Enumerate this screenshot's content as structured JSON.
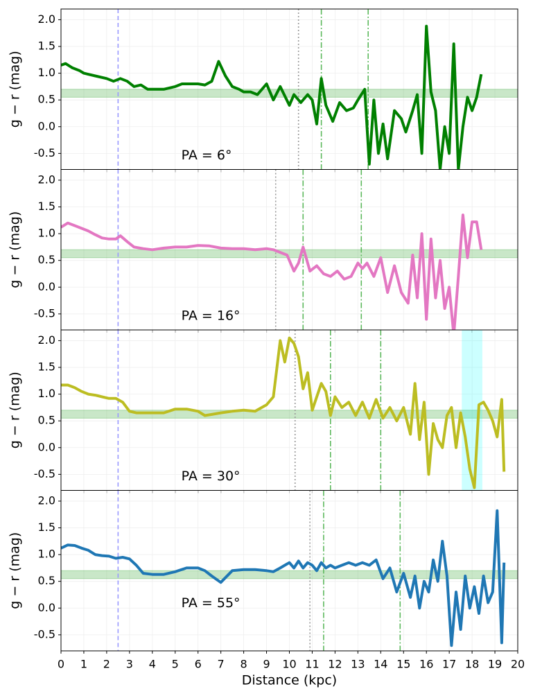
{
  "chart_data": [
    {
      "type": "line",
      "ylabel": "g − r (mag)",
      "annotation": "PA = 6°",
      "color": "#008000",
      "xlim": [
        0,
        20
      ],
      "ylim": [
        -0.8,
        2.2
      ],
      "xticks": [
        0,
        1,
        2,
        3,
        4,
        5,
        6,
        7,
        8,
        9,
        10,
        11,
        12,
        13,
        14,
        15,
        16,
        17,
        18,
        19,
        20
      ],
      "yticks": [
        -0.5,
        {
          "value": 0,
          "label": "0.0"
        },
        0.5,
        {
          "value": 1,
          "label": "1.0"
        },
        1.5,
        {
          "value": 2,
          "label": "2.0"
        }
      ],
      "grid": true,
      "hband": {
        "y": [
          0.55,
          0.7
        ],
        "color": "#4daf4a"
      },
      "vlines": [
        {
          "x": 2.5,
          "color": "#9999ff",
          "style": "dashed"
        },
        {
          "x": 10.4,
          "color": "#999999",
          "style": "dotted"
        },
        {
          "x": 11.4,
          "color": "#5cb85c",
          "style": "dashdot"
        },
        {
          "x": 13.45,
          "color": "#5cb85c",
          "style": "dashdot"
        }
      ],
      "x": [
        0,
        0.2,
        0.5,
        0.8,
        1,
        1.5,
        2,
        2.3,
        2.6,
        2.9,
        3.2,
        3.5,
        3.8,
        4,
        4.5,
        5,
        5.3,
        5.6,
        6,
        6.3,
        6.6,
        6.9,
        7.2,
        7.5,
        7.8,
        8,
        8.3,
        8.6,
        9,
        9.3,
        9.6,
        10,
        10.2,
        10.5,
        10.8,
        11,
        11.2,
        11.4,
        11.6,
        11.9,
        12.2,
        12.5,
        12.8,
        13,
        13.3,
        13.5,
        13.7,
        13.9,
        14.1,
        14.3,
        14.6,
        14.9,
        15.1,
        15.4,
        15.6,
        15.8,
        16,
        16.2,
        16.4,
        16.6,
        16.8,
        17,
        17.2,
        17.4,
        17.6,
        17.8,
        18,
        18.2,
        18.4
      ],
      "values": [
        1.15,
        1.18,
        1.1,
        1.05,
        1.0,
        0.95,
        0.9,
        0.85,
        0.9,
        0.85,
        0.75,
        0.78,
        0.7,
        0.7,
        0.7,
        0.75,
        0.8,
        0.8,
        0.8,
        0.78,
        0.85,
        1.22,
        0.95,
        0.75,
        0.7,
        0.65,
        0.65,
        0.6,
        0.8,
        0.5,
        0.75,
        0.4,
        0.6,
        0.45,
        0.6,
        0.5,
        0.05,
        0.9,
        0.4,
        0.1,
        0.45,
        0.3,
        0.35,
        0.5,
        0.7,
        -0.7,
        0.5,
        -0.5,
        0.05,
        -0.6,
        0.3,
        0.15,
        -0.1,
        0.3,
        0.6,
        -0.5,
        1.88,
        0.65,
        0.3,
        -0.8,
        0.0,
        -0.5,
        1.55,
        -0.8,
        0.0,
        0.55,
        0.3,
        0.55,
        0.98
      ]
    },
    {
      "type": "line",
      "ylabel": "g − r (mag)",
      "annotation": "PA = 16°",
      "color": "#e377c2",
      "xlim": [
        0,
        20
      ],
      "ylim": [
        -0.8,
        2.2
      ],
      "xticks": [
        0,
        1,
        2,
        3,
        4,
        5,
        6,
        7,
        8,
        9,
        10,
        11,
        12,
        13,
        14,
        15,
        16,
        17,
        18,
        19,
        20
      ],
      "yticks": [
        -0.5,
        {
          "value": 0,
          "label": "0.0"
        },
        0.5,
        {
          "value": 1,
          "label": "1.0"
        },
        1.5,
        {
          "value": 2,
          "label": "2.0"
        }
      ],
      "grid": true,
      "hband": {
        "y": [
          0.55,
          0.7
        ],
        "color": "#4daf4a"
      },
      "vlines": [
        {
          "x": 2.5,
          "color": "#9999ff",
          "style": "dashed"
        },
        {
          "x": 9.4,
          "color": "#999999",
          "style": "dotted"
        },
        {
          "x": 10.6,
          "color": "#5cb85c",
          "style": "dashdot"
        },
        {
          "x": 13.15,
          "color": "#5cb85c",
          "style": "dashdot"
        }
      ],
      "x": [
        0,
        0.3,
        0.6,
        0.9,
        1.2,
        1.5,
        1.8,
        2.1,
        2.4,
        2.6,
        2.9,
        3.2,
        3.6,
        4,
        4.5,
        5,
        5.5,
        6,
        6.5,
        7,
        7.5,
        8,
        8.5,
        9,
        9.3,
        9.6,
        9.9,
        10.2,
        10.4,
        10.6,
        10.9,
        11.2,
        11.5,
        11.8,
        12.1,
        12.4,
        12.7,
        13,
        13.2,
        13.4,
        13.7,
        14,
        14.3,
        14.6,
        14.9,
        15.2,
        15.4,
        15.6,
        15.8,
        16,
        16.2,
        16.4,
        16.6,
        16.8,
        17,
        17.2,
        17.4,
        17.6,
        17.8,
        18,
        18.2,
        18.4
      ],
      "values": [
        1.12,
        1.2,
        1.15,
        1.1,
        1.05,
        0.98,
        0.92,
        0.9,
        0.9,
        0.96,
        0.85,
        0.75,
        0.72,
        0.7,
        0.73,
        0.75,
        0.75,
        0.78,
        0.77,
        0.73,
        0.72,
        0.72,
        0.7,
        0.72,
        0.7,
        0.65,
        0.6,
        0.3,
        0.45,
        0.75,
        0.3,
        0.4,
        0.25,
        0.2,
        0.3,
        0.15,
        0.2,
        0.45,
        0.35,
        0.45,
        0.2,
        0.55,
        -0.1,
        0.4,
        -0.1,
        -0.3,
        0.6,
        -0.2,
        1.0,
        -0.6,
        0.9,
        -0.2,
        0.5,
        -0.4,
        0.0,
        -0.9,
        0.2,
        1.35,
        0.55,
        1.22,
        1.22,
        0.7
      ]
    },
    {
      "type": "line",
      "ylabel": "g − r (mag)",
      "annotation": "PA = 30°",
      "color": "#bcbd22",
      "xlim": [
        0,
        20
      ],
      "ylim": [
        -0.8,
        2.2
      ],
      "xticks": [
        0,
        1,
        2,
        3,
        4,
        5,
        6,
        7,
        8,
        9,
        10,
        11,
        12,
        13,
        14,
        15,
        16,
        17,
        18,
        19,
        20
      ],
      "yticks": [
        -0.5,
        {
          "value": 0,
          "label": "0.0"
        },
        0.5,
        {
          "value": 1,
          "label": "1.0"
        },
        1.5,
        {
          "value": 2,
          "label": "2.0"
        }
      ],
      "grid": true,
      "hband": {
        "y": [
          0.55,
          0.7
        ],
        "color": "#4daf4a"
      },
      "vspan": {
        "x": [
          17.55,
          18.45
        ],
        "color": "#00ffff"
      },
      "vlines": [
        {
          "x": 2.5,
          "color": "#9999ff",
          "style": "dashed"
        },
        {
          "x": 10.25,
          "color": "#999999",
          "style": "dotted"
        },
        {
          "x": 11.8,
          "color": "#5cb85c",
          "style": "dashdot"
        },
        {
          "x": 14.0,
          "color": "#5cb85c",
          "style": "dashdot"
        }
      ],
      "x": [
        0,
        0.3,
        0.6,
        0.9,
        1.2,
        1.5,
        1.8,
        2.1,
        2.4,
        2.7,
        3,
        3.3,
        3.6,
        4,
        4.5,
        5,
        5.5,
        6,
        6.3,
        6.6,
        7,
        7.5,
        8,
        8.5,
        9,
        9.3,
        9.6,
        9.8,
        10,
        10.2,
        10.4,
        10.6,
        10.8,
        11,
        11.2,
        11.4,
        11.6,
        11.8,
        12,
        12.3,
        12.6,
        12.9,
        13.2,
        13.5,
        13.8,
        14.1,
        14.4,
        14.7,
        15,
        15.3,
        15.5,
        15.7,
        15.9,
        16.1,
        16.3,
        16.5,
        16.7,
        16.9,
        17.1,
        17.3,
        17.5,
        17.7,
        17.9,
        18.1,
        18.3,
        18.5,
        18.7,
        18.9,
        19.1,
        19.3,
        19.4
      ],
      "values": [
        1.17,
        1.17,
        1.12,
        1.05,
        1.0,
        0.98,
        0.95,
        0.92,
        0.92,
        0.85,
        0.68,
        0.65,
        0.65,
        0.65,
        0.65,
        0.72,
        0.72,
        0.68,
        0.6,
        0.62,
        0.65,
        0.68,
        0.7,
        0.68,
        0.8,
        0.95,
        2.0,
        1.6,
        2.05,
        1.95,
        1.7,
        1.1,
        1.4,
        0.7,
        0.95,
        1.2,
        1.05,
        0.6,
        0.95,
        0.75,
        0.85,
        0.6,
        0.85,
        0.55,
        0.9,
        0.55,
        0.75,
        0.5,
        0.75,
        0.25,
        1.2,
        0.15,
        0.85,
        -0.5,
        0.45,
        0.15,
        0.0,
        0.6,
        0.75,
        0.0,
        0.65,
        0.2,
        -0.4,
        -0.75,
        0.8,
        0.85,
        0.7,
        0.5,
        0.2,
        0.9,
        -0.45
      ]
    },
    {
      "type": "line",
      "ylabel": "g − r (mag)",
      "xlabel": "Distance (kpc)",
      "annotation": "PA = 55°",
      "color": "#1f77b4",
      "xlim": [
        0,
        20
      ],
      "ylim": [
        -0.8,
        2.2
      ],
      "xticks": [
        0,
        1,
        2,
        3,
        4,
        5,
        6,
        7,
        8,
        9,
        10,
        11,
        12,
        13,
        14,
        15,
        16,
        17,
        18,
        19,
        20
      ],
      "yticks": [
        -0.5,
        {
          "value": 0,
          "label": "0.0"
        },
        0.5,
        {
          "value": 1,
          "label": "1.0"
        },
        1.5,
        {
          "value": 2,
          "label": "2.0"
        }
      ],
      "grid": true,
      "hband": {
        "y": [
          0.55,
          0.7
        ],
        "color": "#4daf4a"
      },
      "vlines": [
        {
          "x": 2.5,
          "color": "#9999ff",
          "style": "dashed"
        },
        {
          "x": 10.9,
          "color": "#999999",
          "style": "dotted"
        },
        {
          "x": 11.5,
          "color": "#5cb85c",
          "style": "dashdot"
        },
        {
          "x": 14.85,
          "color": "#5cb85c",
          "style": "dashdot"
        }
      ],
      "x": [
        0,
        0.3,
        0.6,
        0.9,
        1.2,
        1.5,
        1.8,
        2.1,
        2.4,
        2.7,
        3,
        3.3,
        3.6,
        4,
        4.5,
        5,
        5.5,
        6,
        6.3,
        6.6,
        7,
        7.5,
        8,
        8.5,
        9,
        9.3,
        9.6,
        9.8,
        10,
        10.2,
        10.4,
        10.6,
        10.8,
        11,
        11.2,
        11.4,
        11.6,
        11.8,
        12,
        12.3,
        12.6,
        12.9,
        13.2,
        13.5,
        13.8,
        14.1,
        14.4,
        14.7,
        15,
        15.3,
        15.5,
        15.7,
        15.9,
        16.1,
        16.3,
        16.5,
        16.7,
        16.9,
        17.1,
        17.3,
        17.5,
        17.7,
        17.9,
        18.1,
        18.3,
        18.5,
        18.7,
        18.9,
        19.1,
        19.3,
        19.4
      ],
      "values": [
        1.12,
        1.18,
        1.17,
        1.12,
        1.08,
        1.0,
        0.98,
        0.97,
        0.93,
        0.95,
        0.92,
        0.8,
        0.65,
        0.63,
        0.63,
        0.68,
        0.75,
        0.75,
        0.7,
        0.6,
        0.48,
        0.7,
        0.72,
        0.72,
        0.7,
        0.68,
        0.75,
        0.8,
        0.85,
        0.75,
        0.88,
        0.75,
        0.85,
        0.8,
        0.7,
        0.85,
        0.75,
        0.8,
        0.75,
        0.8,
        0.85,
        0.8,
        0.85,
        0.8,
        0.9,
        0.55,
        0.75,
        0.3,
        0.65,
        0.2,
        0.6,
        0.0,
        0.5,
        0.3,
        0.9,
        0.5,
        1.25,
        0.6,
        -0.7,
        0.3,
        -0.4,
        0.6,
        0.0,
        0.4,
        -0.1,
        0.6,
        0.1,
        0.3,
        1.82,
        -0.65,
        0.85
      ]
    }
  ]
}
